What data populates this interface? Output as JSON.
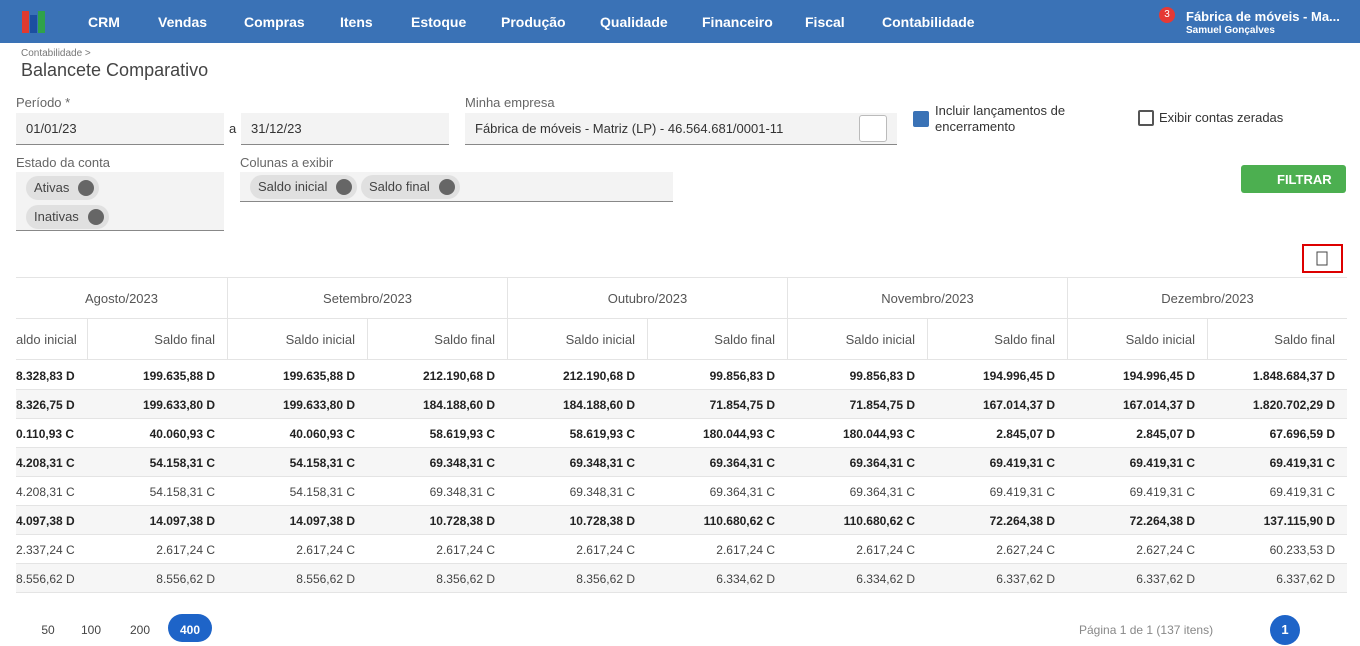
{
  "nav": {
    "items": [
      "CRM",
      "Vendas",
      "Compras",
      "Itens",
      "Estoque",
      "Produção",
      "Qualidade",
      "Financeiro",
      "Fiscal",
      "Contabilidade"
    ],
    "notifications": "3",
    "company": "Fábrica de móveis - Ma...",
    "user": "Samuel Gonçalves"
  },
  "header": {
    "breadcrumb": "Contabilidade >",
    "title": "Balancete Comparativo"
  },
  "filters": {
    "period_label": "Período *",
    "start": "01/01/23",
    "separator": "a",
    "end": "31/12/23",
    "company_label": "Minha empresa",
    "company": "Fábrica de móveis - Matriz (LP) - 46.564.681/0001-11",
    "include_closing": {
      "label": "Incluir lançamentos de encerramento",
      "checked": true
    },
    "show_zero": {
      "label": "Exibir contas zeradas",
      "checked": false
    },
    "status_label": "Estado da conta",
    "status_chips": [
      "Ativas",
      "Inativas"
    ],
    "columns_label": "Colunas a exibir",
    "columns_chips": [
      "Saldo inicial",
      "Saldo final"
    ],
    "button": "FILTRAR"
  },
  "table": {
    "months": [
      "Agosto/2023",
      "Setembro/2023",
      "Outubro/2023",
      "Novembro/2023",
      "Dezembro/2023"
    ],
    "subheaders": [
      "aldo inicial",
      "Saldo final",
      "Saldo inicial",
      "Saldo final",
      "Saldo inicial",
      "Saldo final",
      "Saldo inicial",
      "Saldo final",
      "Saldo inicial",
      "Saldo final"
    ],
    "rows": [
      {
        "bold": true,
        "cells": [
          "8.328,83 D",
          "199.635,88 D",
          "199.635,88 D",
          "212.190,68 D",
          "212.190,68 D",
          "99.856,83 D",
          "99.856,83 D",
          "194.996,45 D",
          "194.996,45 D",
          "1.848.684,37 D"
        ]
      },
      {
        "bold": true,
        "cells": [
          "8.326,75 D",
          "199.633,80 D",
          "199.633,80 D",
          "184.188,60 D",
          "184.188,60 D",
          "71.854,75 D",
          "71.854,75 D",
          "167.014,37 D",
          "167.014,37 D",
          "1.820.702,29 D"
        ]
      },
      {
        "bold": true,
        "cells": [
          "0.110,93 C",
          "40.060,93 C",
          "40.060,93 C",
          "58.619,93 C",
          "58.619,93 C",
          "180.044,93 C",
          "180.044,93 C",
          "2.845,07 D",
          "2.845,07 D",
          "67.696,59 D"
        ]
      },
      {
        "bold": true,
        "cells": [
          "4.208,31 C",
          "54.158,31 C",
          "54.158,31 C",
          "69.348,31 C",
          "69.348,31 C",
          "69.364,31 C",
          "69.364,31 C",
          "69.419,31 C",
          "69.419,31 C",
          "69.419,31 C"
        ]
      },
      {
        "bold": false,
        "cells": [
          "4.208,31 C",
          "54.158,31 C",
          "54.158,31 C",
          "69.348,31 C",
          "69.348,31 C",
          "69.364,31 C",
          "69.364,31 C",
          "69.419,31 C",
          "69.419,31 C",
          "69.419,31 C"
        ]
      },
      {
        "bold": true,
        "cells": [
          "4.097,38 D",
          "14.097,38 D",
          "14.097,38 D",
          "10.728,38 D",
          "10.728,38 D",
          "110.680,62 C",
          "110.680,62 C",
          "72.264,38 D",
          "72.264,38 D",
          "137.115,90 D"
        ]
      },
      {
        "bold": false,
        "cells": [
          "2.337,24 C",
          "2.617,24 C",
          "2.617,24 C",
          "2.617,24 C",
          "2.617,24 C",
          "2.617,24 C",
          "2.617,24 C",
          "2.627,24 C",
          "2.627,24 C",
          "60.233,53 D"
        ]
      },
      {
        "bold": false,
        "cells": [
          "8.556,62 D",
          "8.556,62 D",
          "8.556,62 D",
          "8.356,62 D",
          "8.356,62 D",
          "6.334,62 D",
          "6.334,62 D",
          "6.337,62 D",
          "6.337,62 D",
          "6.337,62 D"
        ]
      }
    ]
  },
  "pagination": {
    "sizes": [
      "50",
      "100",
      "200",
      "400"
    ],
    "active": 3,
    "info": "Página 1 de 1 (137 itens)",
    "page": "1"
  }
}
